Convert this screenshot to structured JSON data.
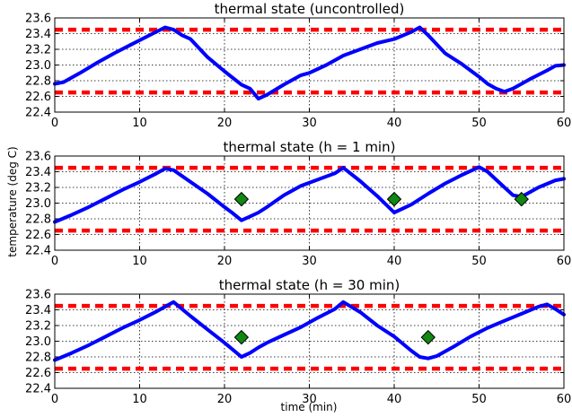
{
  "colors": {
    "trajectory": "#0000ff",
    "bound": "#ff0000",
    "marker": "#118811",
    "grid": "#000000"
  },
  "figure": {
    "ylabel": "temperature (deg C)",
    "xlabel": "time (min)"
  },
  "chart_data": [
    {
      "type": "line",
      "title": "thermal state (uncontrolled)",
      "xlim": [
        0,
        60
      ],
      "ylim": [
        22.4,
        23.6
      ],
      "xticks": [
        "0",
        "10",
        "20",
        "30",
        "40",
        "50",
        "60"
      ],
      "yticks": [
        "22.4",
        "22.6",
        "22.8",
        "23.0",
        "23.2",
        "23.4",
        "23.6"
      ],
      "grid": true,
      "bounds": [
        22.65,
        23.45
      ],
      "series": [
        {
          "x": [
            0,
            1,
            3,
            5,
            7,
            9,
            11,
            13,
            14,
            15,
            16,
            18,
            20,
            22,
            23,
            24,
            25,
            27,
            29,
            30,
            32,
            34,
            36,
            38,
            40,
            42,
            43,
            44,
            46,
            48,
            50,
            51,
            52,
            53,
            54,
            56,
            58,
            59,
            60
          ],
          "y": [
            22.76,
            22.78,
            22.9,
            23.03,
            23.15,
            23.26,
            23.37,
            23.48,
            23.45,
            23.38,
            23.33,
            23.1,
            22.92,
            22.75,
            22.7,
            22.57,
            22.62,
            22.75,
            22.87,
            22.9,
            23.0,
            23.12,
            23.2,
            23.28,
            23.33,
            23.42,
            23.48,
            23.38,
            23.15,
            23.01,
            22.85,
            22.76,
            22.7,
            22.66,
            22.7,
            22.82,
            22.93,
            22.99,
            23.0
          ]
        }
      ],
      "markers": []
    },
    {
      "type": "line",
      "title": "thermal state (h = 1 min)",
      "xlim": [
        0,
        60
      ],
      "ylim": [
        22.4,
        23.6
      ],
      "xticks": [
        "0",
        "10",
        "20",
        "30",
        "40",
        "50",
        "60"
      ],
      "yticks": [
        "22.4",
        "22.6",
        "22.8",
        "23.0",
        "23.2",
        "23.4",
        "23.6"
      ],
      "grid": true,
      "bounds": [
        22.65,
        23.45
      ],
      "series": [
        {
          "x": [
            0,
            2,
            4,
            6,
            8,
            10,
            12,
            13,
            14,
            16,
            18,
            20,
            21,
            22,
            23,
            24,
            25,
            27,
            29,
            31,
            33,
            34,
            36,
            38,
            40,
            42,
            44,
            46,
            48,
            50,
            51,
            53,
            54,
            55,
            57,
            59,
            60
          ],
          "y": [
            22.76,
            22.85,
            22.95,
            23.06,
            23.17,
            23.27,
            23.38,
            23.44,
            23.42,
            23.27,
            23.12,
            22.95,
            22.87,
            22.78,
            22.83,
            22.88,
            22.95,
            23.1,
            23.22,
            23.3,
            23.38,
            23.45,
            23.28,
            23.09,
            22.88,
            22.98,
            23.12,
            23.25,
            23.36,
            23.46,
            23.4,
            23.2,
            23.1,
            23.08,
            23.2,
            23.29,
            23.31
          ]
        }
      ],
      "markers": [
        {
          "x": 22,
          "y": 23.05
        },
        {
          "x": 40,
          "y": 23.05
        },
        {
          "x": 55,
          "y": 23.05
        }
      ]
    },
    {
      "type": "line",
      "title": "thermal state (h = 30 min)",
      "xlim": [
        0,
        60
      ],
      "ylim": [
        22.4,
        23.6
      ],
      "xticks": [
        "0",
        "10",
        "20",
        "30",
        "40",
        "50",
        "60"
      ],
      "yticks": [
        "22.4",
        "22.6",
        "22.8",
        "23.0",
        "23.2",
        "23.4",
        "23.6"
      ],
      "grid": true,
      "bounds": [
        22.65,
        23.45
      ],
      "series": [
        {
          "x": [
            0,
            2,
            4,
            6,
            8,
            10,
            12,
            14,
            16,
            18,
            20,
            22,
            23,
            24,
            25,
            27,
            29,
            31,
            33,
            34,
            36,
            38,
            40,
            42,
            43,
            44,
            45,
            47,
            49,
            51,
            53,
            55,
            57,
            58,
            59,
            60
          ],
          "y": [
            22.76,
            22.85,
            22.95,
            23.06,
            23.17,
            23.27,
            23.38,
            23.5,
            23.32,
            23.15,
            22.98,
            22.8,
            22.85,
            22.92,
            22.98,
            23.08,
            23.18,
            23.3,
            23.41,
            23.5,
            23.37,
            23.2,
            23.06,
            22.88,
            22.8,
            22.78,
            22.81,
            22.93,
            23.06,
            23.17,
            23.26,
            23.35,
            23.44,
            23.47,
            23.41,
            23.34
          ]
        }
      ],
      "markers": [
        {
          "x": 22,
          "y": 23.05
        },
        {
          "x": 44,
          "y": 23.05
        }
      ]
    }
  ]
}
